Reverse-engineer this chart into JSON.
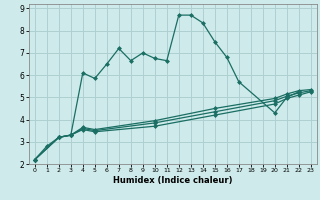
{
  "xlabel": "Humidex (Indice chaleur)",
  "bg_color": "#ceeaea",
  "grid_color": "#add0d0",
  "line_color": "#1a6e64",
  "xlim": [
    -0.5,
    23.5
  ],
  "ylim": [
    2,
    9.2
  ],
  "xticks": [
    0,
    1,
    2,
    3,
    4,
    5,
    6,
    7,
    8,
    9,
    10,
    11,
    12,
    13,
    14,
    15,
    16,
    17,
    18,
    19,
    20,
    21,
    22,
    23
  ],
  "yticks": [
    2,
    3,
    4,
    5,
    6,
    7,
    8,
    9
  ],
  "line_main_x": [
    0,
    1,
    2,
    3,
    4,
    5,
    6,
    7,
    8,
    9,
    10,
    11,
    12,
    13,
    14,
    15,
    16,
    17,
    20,
    21,
    22
  ],
  "line_main_y": [
    2.2,
    2.8,
    3.2,
    3.3,
    6.1,
    5.85,
    6.5,
    7.2,
    6.65,
    7.0,
    6.75,
    6.65,
    8.7,
    8.7,
    8.35,
    7.5,
    6.8,
    5.7,
    4.3,
    5.0,
    5.25
  ],
  "line2_x": [
    0,
    2,
    3,
    4,
    5,
    10,
    15,
    20,
    21,
    22,
    23
  ],
  "line2_y": [
    2.2,
    3.2,
    3.3,
    3.55,
    3.45,
    3.7,
    4.2,
    4.7,
    4.95,
    5.1,
    5.25
  ],
  "line3_x": [
    0,
    2,
    3,
    4,
    5,
    10,
    15,
    20,
    21,
    22,
    23
  ],
  "line3_y": [
    2.2,
    3.2,
    3.3,
    3.6,
    3.5,
    3.85,
    4.35,
    4.85,
    5.05,
    5.2,
    5.3
  ],
  "line4_x": [
    0,
    2,
    3,
    4,
    5,
    10,
    15,
    20,
    21,
    22,
    23
  ],
  "line4_y": [
    2.2,
    3.2,
    3.3,
    3.65,
    3.55,
    3.95,
    4.5,
    4.95,
    5.15,
    5.3,
    5.35
  ]
}
